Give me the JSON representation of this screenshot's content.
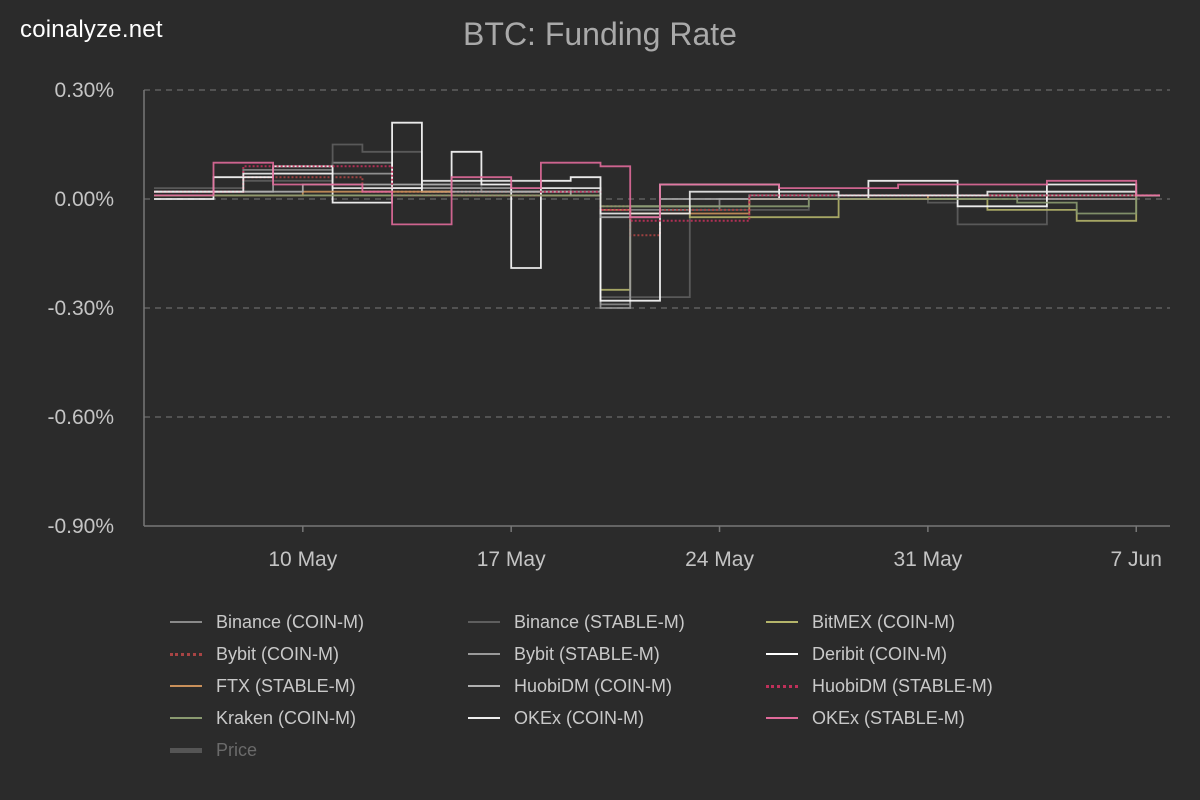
{
  "brand": "coinalyze.net",
  "chart_data": {
    "type": "line",
    "title": "BTC: Funding Rate",
    "ylabel": "",
    "xlabel": "",
    "ylim": [
      -0.9,
      0.3
    ],
    "y_unit": "%",
    "y_ticks": [
      "0.30%",
      "0.00%",
      "-0.30%",
      "-0.60%",
      "-0.90%"
    ],
    "y_tick_values": [
      0.3,
      0.0,
      -0.3,
      -0.6,
      -0.9
    ],
    "x_ticks": [
      {
        "label": "10 May",
        "date": "2021-05-10"
      },
      {
        "label": "17 May",
        "date": "2021-05-17"
      },
      {
        "label": "24 May",
        "date": "2021-05-24"
      },
      {
        "label": "31 May",
        "date": "2021-05-31"
      },
      {
        "label": "7 Jun",
        "date": "2021-06-07"
      }
    ],
    "x_range": [
      "2021-05-05",
      "2021-06-08"
    ],
    "grid": "horizontal dashed",
    "legend_position": "bottom",
    "series": [
      {
        "name": "Binance (COIN-M)",
        "color": "#8a8a8a",
        "style": "solid",
        "x": [
          "2021-05-05",
          "2021-05-08",
          "2021-05-11",
          "2021-05-13",
          "2021-05-16",
          "2021-05-18",
          "2021-05-19",
          "2021-05-20",
          "2021-05-21",
          "2021-05-24",
          "2021-05-27",
          "2021-05-31",
          "2021-06-03",
          "2021-06-07"
        ],
        "values": [
          0.02,
          0.08,
          0.1,
          0.03,
          0.02,
          0.01,
          0.01,
          -0.29,
          -0.03,
          0.0,
          0.01,
          0.01,
          0.0,
          0.01
        ]
      },
      {
        "name": "Binance (STABLE-M)",
        "color": "#5e5e5e",
        "style": "solid",
        "x": [
          "2021-05-05",
          "2021-05-08",
          "2021-05-11",
          "2021-05-12",
          "2021-05-14",
          "2021-05-16",
          "2021-05-19",
          "2021-05-20",
          "2021-05-23",
          "2021-05-27",
          "2021-05-31",
          "2021-06-01",
          "2021-06-04",
          "2021-06-07"
        ],
        "values": [
          0.03,
          0.05,
          0.15,
          0.13,
          0.04,
          0.03,
          0.02,
          -0.27,
          -0.03,
          0.01,
          -0.01,
          -0.07,
          0.02,
          0.01
        ]
      },
      {
        "name": "BitMEX (COIN-M)",
        "color": "#b4b46a",
        "style": "solid",
        "x": [
          "2021-05-05",
          "2021-05-10",
          "2021-05-15",
          "2021-05-19",
          "2021-05-20",
          "2021-05-21",
          "2021-05-23",
          "2021-05-28",
          "2021-06-02",
          "2021-06-05",
          "2021-06-07"
        ],
        "values": [
          0.01,
          0.01,
          0.01,
          0.01,
          -0.25,
          -0.02,
          -0.05,
          0.0,
          -0.03,
          -0.06,
          0.01
        ]
      },
      {
        "name": "Bybit (COIN-M)",
        "color": "#a84444",
        "style": "dotted",
        "x": [
          "2021-05-05",
          "2021-05-08",
          "2021-05-12",
          "2021-05-16",
          "2021-05-19",
          "2021-05-20",
          "2021-05-21",
          "2021-05-22",
          "2021-05-25",
          "2021-05-30",
          "2021-06-04",
          "2021-06-07"
        ],
        "values": [
          0.02,
          0.06,
          0.02,
          0.02,
          0.01,
          -0.02,
          -0.1,
          -0.03,
          0.01,
          0.01,
          0.0,
          0.01
        ]
      },
      {
        "name": "Bybit (STABLE-M)",
        "color": "#9a9a9a",
        "style": "solid",
        "x": [
          "2021-05-05",
          "2021-05-09",
          "2021-05-13",
          "2021-05-17",
          "2021-05-20",
          "2021-05-21",
          "2021-05-25",
          "2021-05-30",
          "2021-06-04",
          "2021-06-07"
        ],
        "values": [
          0.02,
          0.07,
          0.03,
          0.02,
          -0.3,
          -0.02,
          0.01,
          0.01,
          0.0,
          0.01
        ]
      },
      {
        "name": "Deribit (COIN-M)",
        "color": "#ffffff",
        "style": "solid",
        "x": [
          "2021-05-05",
          "2021-05-07",
          "2021-05-09",
          "2021-05-11",
          "2021-05-13",
          "2021-05-14",
          "2021-05-15",
          "2021-05-16",
          "2021-05-17",
          "2021-05-18",
          "2021-05-19",
          "2021-05-20",
          "2021-05-22",
          "2021-05-26",
          "2021-05-29",
          "2021-06-01",
          "2021-06-04",
          "2021-06-07"
        ],
        "values": [
          0.0,
          0.06,
          0.09,
          -0.01,
          0.21,
          0.02,
          0.13,
          0.04,
          -0.19,
          0.05,
          0.06,
          -0.28,
          0.04,
          0.0,
          0.05,
          -0.02,
          0.04,
          0.01
        ]
      },
      {
        "name": "FTX (STABLE-M)",
        "color": "#c9905a",
        "style": "solid",
        "x": [
          "2021-05-05",
          "2021-05-10",
          "2021-05-15",
          "2021-05-20",
          "2021-05-21",
          "2021-05-25",
          "2021-05-31",
          "2021-06-07"
        ],
        "values": [
          0.01,
          0.02,
          0.01,
          -0.03,
          -0.04,
          0.0,
          0.01,
          0.01
        ]
      },
      {
        "name": "HuobiDM (COIN-M)",
        "color": "#b0b0b0",
        "style": "solid",
        "x": [
          "2021-05-05",
          "2021-05-10",
          "2021-05-15",
          "2021-05-19",
          "2021-05-20",
          "2021-05-22",
          "2021-05-28",
          "2021-06-07"
        ],
        "values": [
          0.02,
          0.04,
          0.02,
          0.01,
          -0.05,
          0.0,
          0.01,
          0.01
        ]
      },
      {
        "name": "HuobiDM (STABLE-M)",
        "color": "#c0305a",
        "style": "dotted",
        "x": [
          "2021-05-05",
          "2021-05-08",
          "2021-05-13",
          "2021-05-18",
          "2021-05-20",
          "2021-05-21",
          "2021-05-25",
          "2021-06-01",
          "2021-06-07"
        ],
        "values": [
          0.02,
          0.09,
          0.01,
          0.02,
          -0.03,
          -0.06,
          0.01,
          0.01,
          0.01
        ]
      },
      {
        "name": "Kraken (COIN-M)",
        "color": "#8a9a70",
        "style": "solid",
        "x": [
          "2021-05-05",
          "2021-05-12",
          "2021-05-20",
          "2021-05-27",
          "2021-06-03",
          "2021-06-05",
          "2021-06-07"
        ],
        "values": [
          0.01,
          0.01,
          -0.02,
          0.0,
          -0.01,
          -0.04,
          0.01
        ]
      },
      {
        "name": "OKEx (COIN-M)",
        "color": "#ededed",
        "style": "solid",
        "x": [
          "2021-05-05",
          "2021-05-08",
          "2021-05-11",
          "2021-05-14",
          "2021-05-18",
          "2021-05-20",
          "2021-05-23",
          "2021-05-28",
          "2021-06-02",
          "2021-06-07"
        ],
        "values": [
          0.02,
          0.07,
          0.03,
          0.05,
          0.03,
          -0.04,
          0.02,
          0.01,
          0.02,
          0.01
        ]
      },
      {
        "name": "OKEx (STABLE-M)",
        "color": "#e06a9a",
        "style": "solid",
        "x": [
          "2021-05-05",
          "2021-05-07",
          "2021-05-09",
          "2021-05-12",
          "2021-05-13",
          "2021-05-15",
          "2021-05-17",
          "2021-05-18",
          "2021-05-20",
          "2021-05-21",
          "2021-05-22",
          "2021-05-26",
          "2021-05-30",
          "2021-06-04",
          "2021-06-07"
        ],
        "values": [
          0.01,
          0.1,
          0.04,
          0.02,
          -0.07,
          0.06,
          0.03,
          0.1,
          0.09,
          -0.05,
          0.04,
          0.03,
          0.04,
          0.05,
          0.01
        ]
      }
    ],
    "legend_extra": {
      "name": "Price",
      "color": "#555555",
      "hidden": true
    }
  }
}
